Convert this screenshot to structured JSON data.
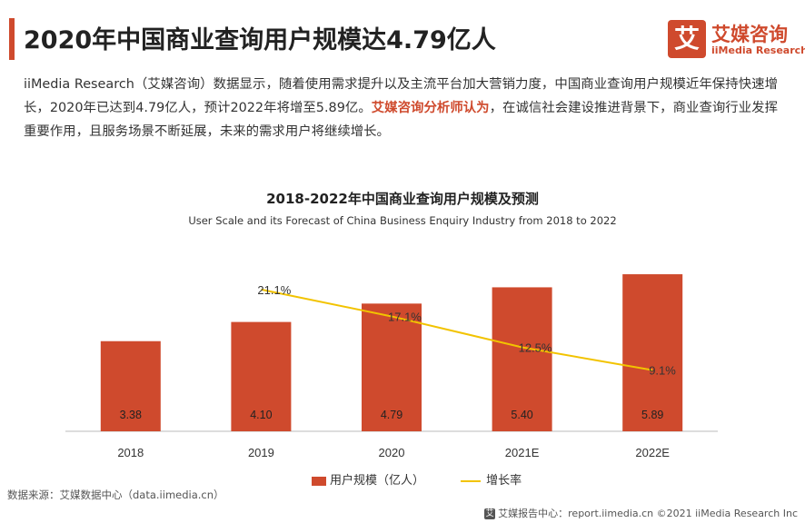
{
  "header": {
    "title": "2020年中国商业查询用户规模达4.79亿人",
    "logo_mark": "艾",
    "logo_cn": "艾媒咨询",
    "logo_en": "iiMedia Research"
  },
  "intro": {
    "text_before": "iiMedia Research（艾媒咨询）数据显示，随着使用需求提升以及主流平台加大营销力度，中国商业查询用户规模近年保持快速增长，2020年已达到4.79亿人，预计2022年将增至5.89亿。",
    "highlight": "艾媒咨询分析师认为",
    "text_after": "，在诚信社会建设推进背景下，商业查询行业发挥重要作用，且服务场景不断延展，未来的需求用户将继续增长。"
  },
  "chart_data": {
    "type": "bar",
    "title": "2018-2022年中国商业查询用户规模及预测",
    "subtitle": "User Scale and its Forecast of China Business Enquiry Industry from 2018 to 2022",
    "categories": [
      "2018",
      "2019",
      "2020",
      "2021E",
      "2022E"
    ],
    "series": [
      {
        "name": "用户规模（亿人）",
        "type": "bar",
        "color": "#cf4a2d",
        "values": [
          3.38,
          4.1,
          4.79,
          5.4,
          5.89
        ]
      },
      {
        "name": "增长率",
        "type": "line",
        "color": "#f2c300",
        "values": [
          null,
          21.1,
          17.1,
          12.5,
          9.1
        ]
      }
    ],
    "bar_labels": [
      "3.38",
      "4.10",
      "4.79",
      "5.40",
      "5.89"
    ],
    "line_labels": [
      "",
      "21.1%",
      "17.1%",
      "12.5%",
      "9.1%"
    ],
    "ylim_bar": [
      0,
      6.3
    ],
    "ylim_line": [
      0,
      25
    ],
    "grid": false,
    "legend_position": "bottom"
  },
  "legend": {
    "bar_label": "用户规模（亿人）",
    "line_label": "增长率"
  },
  "source": "数据来源：艾媒数据中心（data.iimedia.cn）",
  "footer": {
    "icon": "艾",
    "text": "艾媒报告中心：report.iimedia.cn ©2021  iiMedia Research  Inc"
  }
}
